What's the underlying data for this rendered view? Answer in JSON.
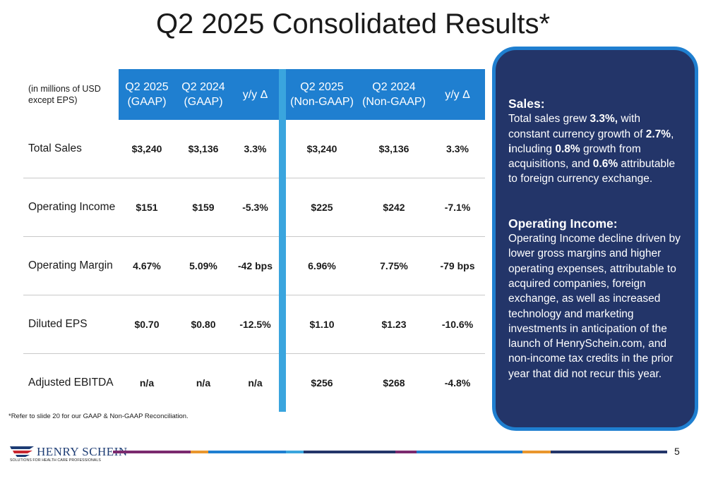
{
  "title": "Q2 2025 Consolidated Results*",
  "table": {
    "unit_note": "(in millions of USD except EPS)",
    "columns": [
      {
        "line1": "Q2 2025",
        "line2": "(GAAP)"
      },
      {
        "line1": "Q2 2024",
        "line2": "(GAAP)"
      },
      {
        "line1": "y/y Δ",
        "line2": ""
      },
      {
        "line1": "Q2 2025",
        "line2": "(Non-GAAP)"
      },
      {
        "line1": "Q2 2024",
        "line2": "(Non-GAAP)"
      },
      {
        "line1": "y/y Δ",
        "line2": ""
      }
    ],
    "rows": [
      {
        "label": "Total Sales",
        "values": [
          "$3,240",
          "$3,136",
          "3.3%",
          "$3,240",
          "$3,136",
          "3.3%"
        ]
      },
      {
        "label": "Operating Income",
        "values": [
          "$151",
          "$159",
          "-5.3%",
          "$225",
          "$242",
          "-7.1%"
        ]
      },
      {
        "label": "Operating Margin",
        "values": [
          "4.67%",
          "5.09%",
          "-42 bps",
          "6.96%",
          "7.75%",
          "-79 bps"
        ]
      },
      {
        "label": "Diluted EPS",
        "values": [
          "$0.70",
          "$0.80",
          "-12.5%",
          "$1.10",
          "$1.23",
          "-10.6%"
        ]
      },
      {
        "label": "Adjusted EBITDA",
        "values": [
          "n/a",
          "n/a",
          "n/a",
          "$256",
          "$268",
          "-4.8%"
        ]
      }
    ]
  },
  "footnote": "*Refer to slide 20 for our GAAP & Non-GAAP Reconciliation.",
  "callout": {
    "sales_heading": "Sales:",
    "sales_t1": "Total sales grew ",
    "sales_b1": "3.3%,",
    "sales_t2": " with constant currency growth of ",
    "sales_b2": "2.7%",
    "sales_t3": ", ",
    "sales_b3": "i",
    "sales_t4": "ncluding ",
    "sales_b4": "0.8%",
    "sales_t5": " growth from acquisitions, and ",
    "sales_b5": "0.6%",
    "sales_t6": " attributable to foreign currency exchange.",
    "oi_heading": "Operating Income:",
    "oi_text": "Operating Income decline driven by lower gross margins and higher operating expenses, attributable to acquired companies, foreign exchange, as well as increased technology and marketing investments in anticipation of the launch of HenrySchein.com, and non-income tax credits in the prior year that did not recur this year."
  },
  "logo": {
    "name": "HENRY SCHEIN",
    "tagline": "SOLUTIONS FOR HEALTH CARE PROFESSIONALS"
  },
  "page_number": "5",
  "colors": {
    "header_blue": "#1f7fd0",
    "separator_blue": "#3aa5de",
    "callout_navy": "#233569",
    "divider": [
      "#7b2a6e",
      "#e9962d",
      "#1f7fd0",
      "#3aa5de",
      "#233569",
      "#7b2a6e",
      "#1f7fd0",
      "#e9962d",
      "#233569"
    ]
  }
}
